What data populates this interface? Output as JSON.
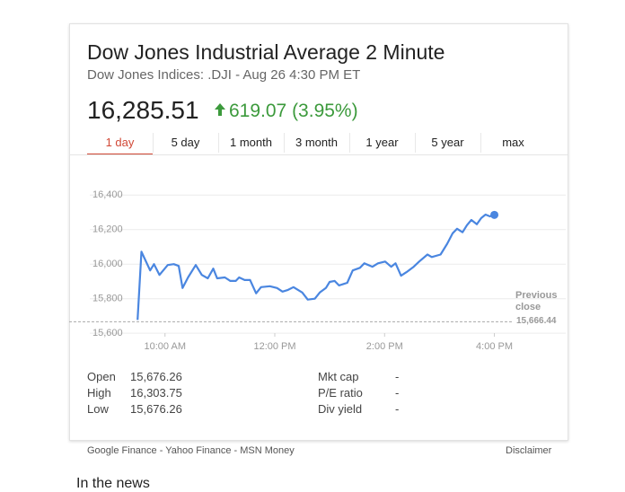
{
  "card": {
    "title": "Dow Jones Industrial Average 2 Minute",
    "subtitle": "Dow Jones Indices: .DJI - Aug 26 4:30 PM ET",
    "price": "16,285.51",
    "change": "619.07 (3.95%)",
    "tabs": [
      "1 day",
      "5 day",
      "1 month",
      "3 month",
      "1 year",
      "5 year",
      "max"
    ],
    "active_tab": 0,
    "stats_left": [
      [
        "Open",
        "15,676.26"
      ],
      [
        "High",
        "16,303.75"
      ],
      [
        "Low",
        "15,676.26"
      ]
    ],
    "stats_right": [
      [
        "Mkt cap",
        "-"
      ],
      [
        "P/E ratio",
        "-"
      ],
      [
        "Div yield",
        "-"
      ]
    ],
    "sources": [
      "Google Finance",
      "Yahoo Finance",
      "MSN Money"
    ],
    "disclaimer": "Disclaimer"
  },
  "chart_data": {
    "type": "line",
    "x": [
      9.5,
      9.57,
      9.73,
      9.8,
      9.9,
      10.05,
      10.16,
      10.25,
      10.32,
      10.42,
      10.56,
      10.67,
      10.78,
      10.88,
      10.95,
      11.09,
      11.19,
      11.29,
      11.35,
      11.45,
      11.55,
      11.66,
      11.75,
      11.91,
      12.04,
      12.14,
      12.24,
      12.34,
      12.5,
      12.6,
      12.73,
      12.82,
      12.93,
      13.0,
      13.09,
      13.17,
      13.32,
      13.42,
      13.55,
      13.63,
      13.78,
      13.88,
      14.01,
      14.12,
      14.2,
      14.3,
      14.4,
      14.53,
      14.63,
      14.78,
      14.86,
      15.02,
      15.14,
      15.24,
      15.32,
      15.42,
      15.5,
      15.58,
      15.68,
      15.76,
      15.84,
      15.92,
      16.0
    ],
    "series": [
      {
        "color": "#4a86e0",
        "values": [
          15677,
          16072,
          15964,
          16000,
          15938,
          15995,
          16000,
          15990,
          15862,
          15923,
          15995,
          15938,
          15918,
          15974,
          15918,
          15923,
          15903,
          15903,
          15923,
          15908,
          15908,
          15831,
          15867,
          15872,
          15862,
          15841,
          15851,
          15867,
          15836,
          15795,
          15800,
          15836,
          15862,
          15897,
          15903,
          15877,
          15892,
          15964,
          15979,
          16005,
          15985,
          16005,
          16015,
          15985,
          16005,
          15933,
          15954,
          15985,
          16015,
          16056,
          16041,
          16056,
          16118,
          16179,
          16205,
          16185,
          16226,
          16256,
          16231,
          16267,
          16287,
          16277,
          16285.51
        ]
      }
    ],
    "xlim": [
      8.63,
      17.3
    ],
    "ylim": [
      15580,
      16490
    ],
    "xticks": [
      {
        "value": 10,
        "label": "10:00 AM"
      },
      {
        "value": 12,
        "label": "12:00 PM"
      },
      {
        "value": 14,
        "label": "2:00 PM"
      },
      {
        "value": 16,
        "label": "4:00 PM"
      }
    ],
    "yticks": [
      {
        "value": 15600,
        "label": "15,600"
      },
      {
        "value": 15800,
        "label": "15,800"
      },
      {
        "value": 16000,
        "label": "16,000"
      },
      {
        "value": 16200,
        "label": "16,200"
      },
      {
        "value": 16400,
        "label": "16,400"
      }
    ],
    "grid": true,
    "previous_close": {
      "label": "Previous close",
      "value": 15666.44,
      "value_label": "15,666.44"
    }
  },
  "news_heading": "In the news"
}
